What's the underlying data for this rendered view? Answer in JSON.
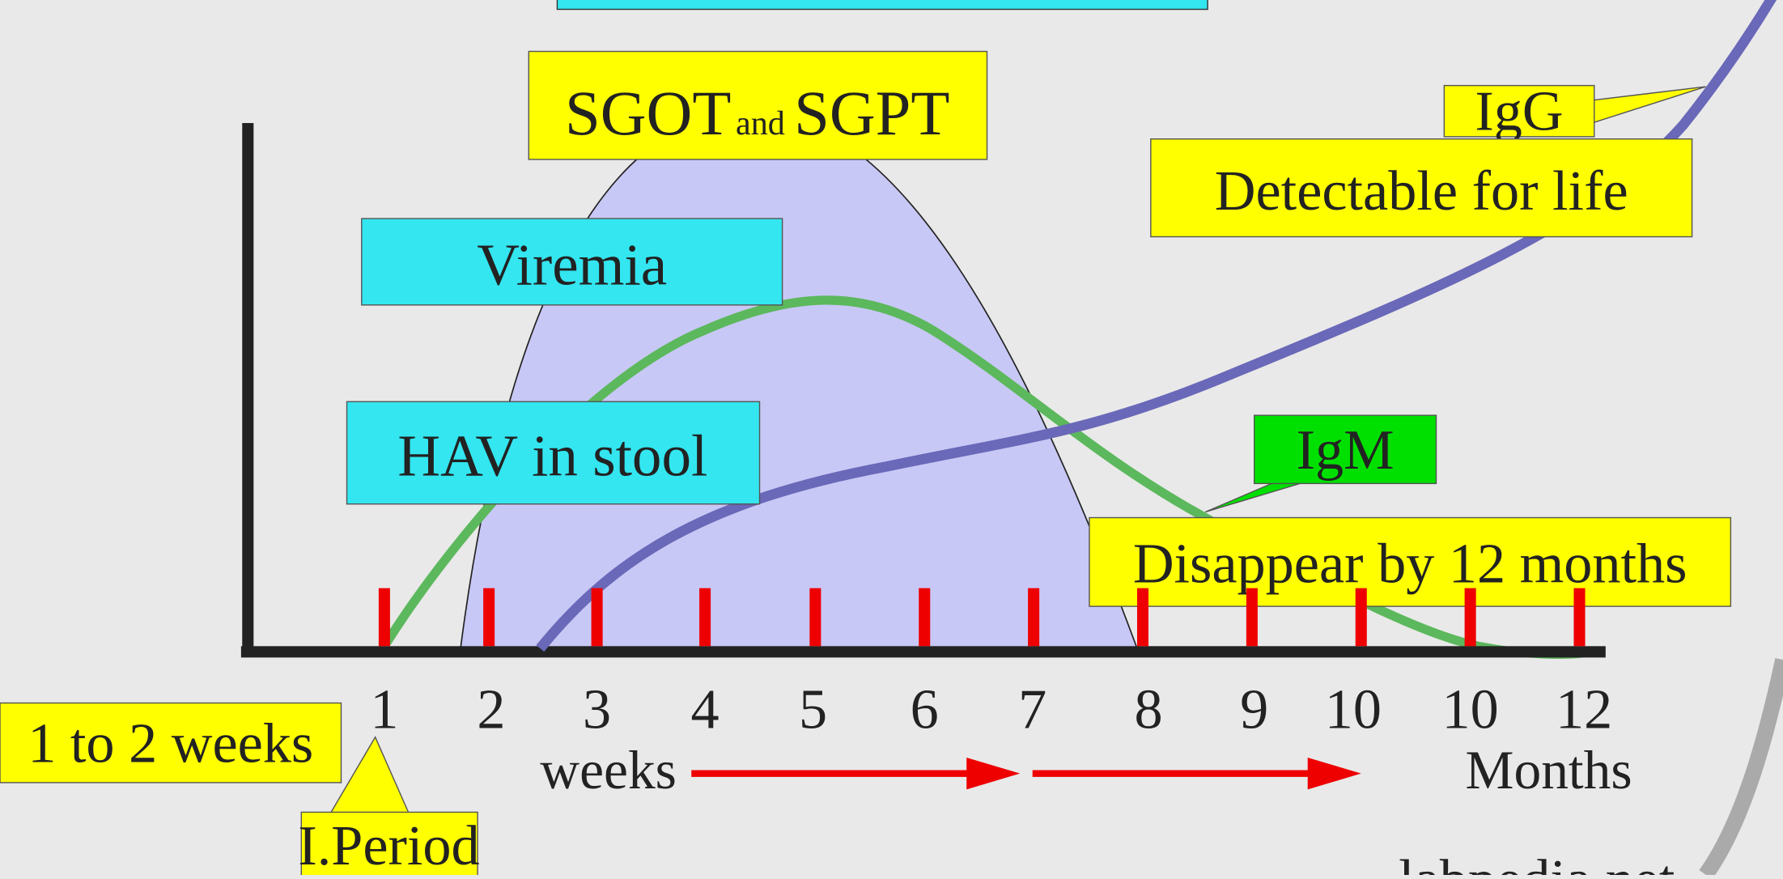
{
  "labels": {
    "sgot": {
      "main1": "SGOT",
      "small": "and",
      "main2": "SGPT"
    },
    "igg": "IgG",
    "igg_note": "Detectable for life",
    "viremia": "Viremia",
    "hav": "HAV in stool",
    "igm": "IgM",
    "igm_note": "Disappear by 12 months",
    "incubation": "1 to 2 weeks",
    "period": "I.Period",
    "weeks": "weeks",
    "months": "Months",
    "source": "labpedia.net"
  },
  "x_axis_labels": [
    "1",
    "2",
    "3",
    "4",
    "5",
    "6",
    "7",
    "8",
    "9",
    "10",
    "10",
    "12"
  ]
}
